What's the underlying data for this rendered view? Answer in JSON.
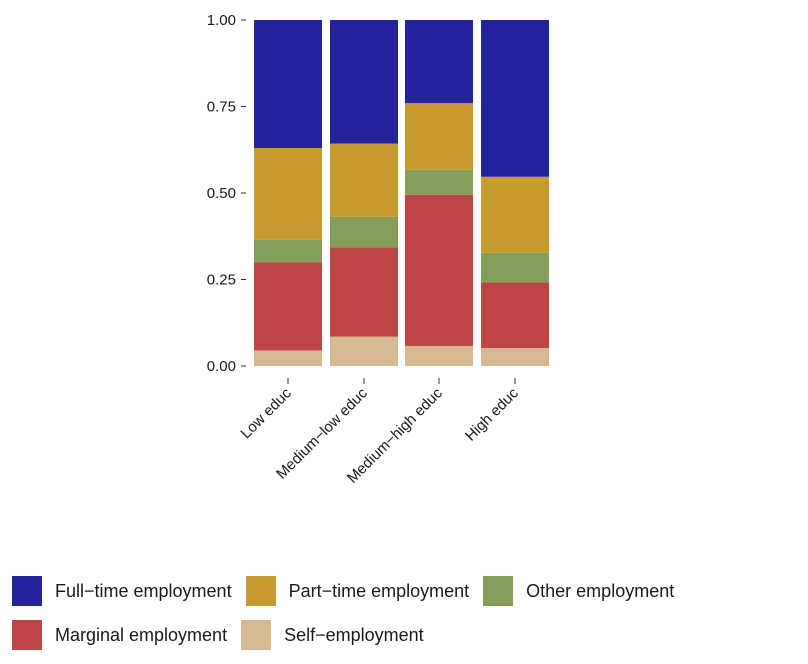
{
  "chart_data": {
    "type": "bar",
    "stacked": true,
    "categories": [
      "Low educ",
      "Medium−low educ",
      "Medium−high educ",
      "High educ"
    ],
    "series": [
      {
        "name": "Self−employment",
        "color": "#D6B891",
        "values": [
          0.045,
          0.085,
          0.058,
          0.052
        ]
      },
      {
        "name": "Marginal employment",
        "color": "#BE4545",
        "values": [
          0.255,
          0.258,
          0.437,
          0.19
        ]
      },
      {
        "name": "Other employment",
        "color": "#849E59",
        "values": [
          0.065,
          0.088,
          0.072,
          0.085
        ]
      },
      {
        "name": "Part−time employment",
        "color": "#C69A2E",
        "values": [
          0.265,
          0.212,
          0.193,
          0.22
        ]
      },
      {
        "name": "Full−time employment",
        "color": "#23249B",
        "values": [
          0.37,
          0.357,
          0.24,
          0.453
        ]
      }
    ],
    "yticks": [
      "0.00",
      "0.25",
      "0.50",
      "0.75",
      "1.00"
    ],
    "ytick_values": [
      0,
      0.25,
      0.5,
      0.75,
      1.0
    ],
    "ylim": [
      0,
      1
    ],
    "xlabel": "",
    "ylabel": "",
    "grid": false,
    "legend_position": "bottom"
  },
  "legend": {
    "rows": [
      [
        {
          "label": "Full−time employment",
          "color": "#23249B"
        },
        {
          "label": "Part−time employment",
          "color": "#C69A2E"
        },
        {
          "label": "Other employment",
          "color": "#849E59"
        }
      ],
      [
        {
          "label": "Marginal employment",
          "color": "#BE4545"
        },
        {
          "label": "Self−employment",
          "color": "#D6B891"
        }
      ]
    ]
  }
}
